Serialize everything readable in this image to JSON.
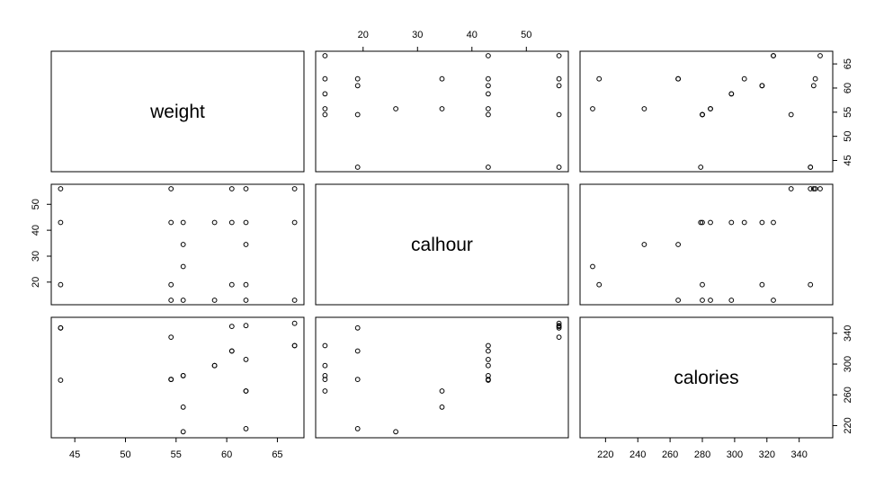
{
  "chart_data": {
    "type": "scatter",
    "variables": [
      "weight",
      "calhour",
      "calories"
    ],
    "ranges": {
      "weight": [
        43.6,
        66.7
      ],
      "calhour": [
        13,
        56
      ],
      "calories": [
        210,
        355
      ]
    },
    "ticks": {
      "weight": [
        45,
        50,
        55,
        60,
        65
      ],
      "calhour": [
        20,
        30,
        40,
        50
      ],
      "calories": [
        220,
        260,
        300,
        340
      ]
    },
    "ticks_right_row1": [
      45,
      50,
      55,
      60,
      65
    ],
    "ticks_bottom_col3": [
      220,
      240,
      260,
      280,
      300,
      320,
      340
    ],
    "observations": [
      {
        "weight": 43.6,
        "calhour": 56,
        "calories": 347
      },
      {
        "weight": 43.6,
        "calhour": 43,
        "calories": 279
      },
      {
        "weight": 43.6,
        "calhour": 19,
        "calories": 347
      },
      {
        "weight": 54.5,
        "calhour": 56,
        "calories": 335
      },
      {
        "weight": 54.5,
        "calhour": 43,
        "calories": 280
      },
      {
        "weight": 54.5,
        "calhour": 19,
        "calories": 280
      },
      {
        "weight": 54.5,
        "calhour": 13,
        "calories": 280
      },
      {
        "weight": 55.7,
        "calhour": 43,
        "calories": 285
      },
      {
        "weight": 55.7,
        "calhour": 34.5,
        "calories": 244
      },
      {
        "weight": 55.7,
        "calhour": 26,
        "calories": 212
      },
      {
        "weight": 55.7,
        "calhour": 13,
        "calories": 285
      },
      {
        "weight": 58.8,
        "calhour": 43,
        "calories": 298
      },
      {
        "weight": 58.8,
        "calhour": 13,
        "calories": 298
      },
      {
        "weight": 60.5,
        "calhour": 56,
        "calories": 349
      },
      {
        "weight": 60.5,
        "calhour": 43,
        "calories": 317
      },
      {
        "weight": 60.5,
        "calhour": 19,
        "calories": 317
      },
      {
        "weight": 61.9,
        "calhour": 56,
        "calories": 350
      },
      {
        "weight": 61.9,
        "calhour": 43,
        "calories": 306
      },
      {
        "weight": 61.9,
        "calhour": 34.5,
        "calories": 265
      },
      {
        "weight": 61.9,
        "calhour": 19,
        "calories": 216
      },
      {
        "weight": 61.9,
        "calhour": 13,
        "calories": 265
      },
      {
        "weight": 66.7,
        "calhour": 56,
        "calories": 353
      },
      {
        "weight": 66.7,
        "calhour": 43,
        "calories": 324
      },
      {
        "weight": 66.7,
        "calhour": 13,
        "calories": 324
      }
    ]
  }
}
